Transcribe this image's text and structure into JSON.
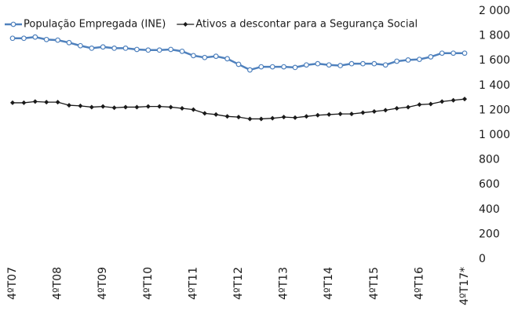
{
  "chart_data": {
    "type": "line",
    "categories": [
      "4ºT07",
      null,
      null,
      null,
      "4ºT08",
      null,
      null,
      null,
      "4ºT09",
      null,
      null,
      null,
      "4ºT10",
      null,
      null,
      null,
      "4ºT11",
      null,
      null,
      null,
      "4ºT12",
      null,
      null,
      null,
      "4ºT13",
      null,
      null,
      null,
      "4ºT14",
      null,
      null,
      null,
      "4ºT15",
      null,
      null,
      null,
      "4ºT16",
      null,
      null,
      null,
      "4ºT17*"
    ],
    "series": [
      {
        "name": "População Empregada (INE)",
        "color": "#4f81bd",
        "marker": "circle",
        "values": [
          1780,
          1780,
          1790,
          1770,
          1765,
          1745,
          1720,
          1700,
          1710,
          1700,
          1700,
          1690,
          1685,
          1685,
          1690,
          1675,
          1640,
          1625,
          1635,
          1615,
          1570,
          1525,
          1550,
          1550,
          1550,
          1545,
          1565,
          1575,
          1565,
          1560,
          1575,
          1575,
          1575,
          1565,
          1595,
          1605,
          1610,
          1630,
          1660,
          1660,
          1660
        ]
      },
      {
        "name": "Ativos a descontar para a Segurança Social",
        "color": "#1a1a1a",
        "marker": "diamond",
        "values": [
          1260,
          1260,
          1270,
          1265,
          1265,
          1240,
          1235,
          1225,
          1230,
          1220,
          1225,
          1225,
          1230,
          1230,
          1225,
          1215,
          1205,
          1175,
          1165,
          1150,
          1145,
          1130,
          1130,
          1135,
          1145,
          1140,
          1150,
          1160,
          1165,
          1170,
          1170,
          1180,
          1190,
          1200,
          1215,
          1225,
          1245,
          1250,
          1270,
          1280,
          1290
        ]
      }
    ],
    "ylim": [
      0,
      2000
    ],
    "yticks": [
      0,
      200,
      400,
      600,
      800,
      {
        "value": 1000,
        "label": "1 000"
      },
      {
        "value": 1200,
        "label": "1 200"
      },
      {
        "value": 1400,
        "label": "1 400"
      },
      {
        "value": 1600,
        "label": "1 600"
      },
      {
        "value": 1800,
        "label": "1 800"
      },
      {
        "value": 2000,
        "label": "2 000"
      }
    ],
    "legend": "top"
  }
}
